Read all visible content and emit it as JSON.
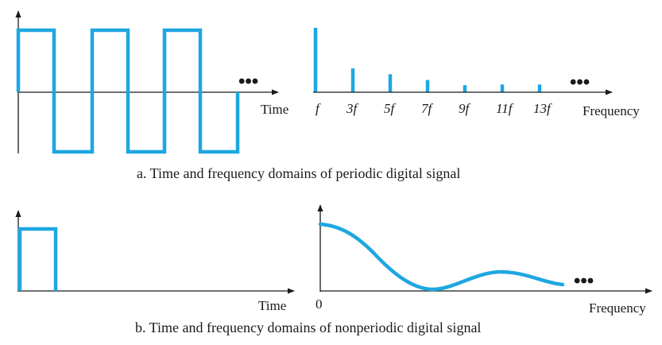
{
  "colors": {
    "signal": "#1ea7e1",
    "axis": "#1a1a1a"
  },
  "panel_a": {
    "time_label": "Time",
    "frequency_label": "Frequency",
    "ellipsis": "•••",
    "caption": "a. Time and frequency domains of periodic digital signal",
    "harmonics": [
      {
        "label": "f",
        "amplitude": 1.0
      },
      {
        "label": "3f",
        "amplitude": 0.37
      },
      {
        "label": "5f",
        "amplitude": 0.28
      },
      {
        "label": "7f",
        "amplitude": 0.19
      },
      {
        "label": "9f",
        "amplitude": 0.11
      },
      {
        "label": "11f",
        "amplitude": 0.12
      },
      {
        "label": "13f",
        "amplitude": 0.12
      }
    ]
  },
  "panel_b": {
    "time_label": "Time",
    "frequency_label": "Frequency",
    "zero_label": "0",
    "ellipsis": "•••",
    "caption": "b. Time and frequency domains of nonperiodic digital signal"
  }
}
